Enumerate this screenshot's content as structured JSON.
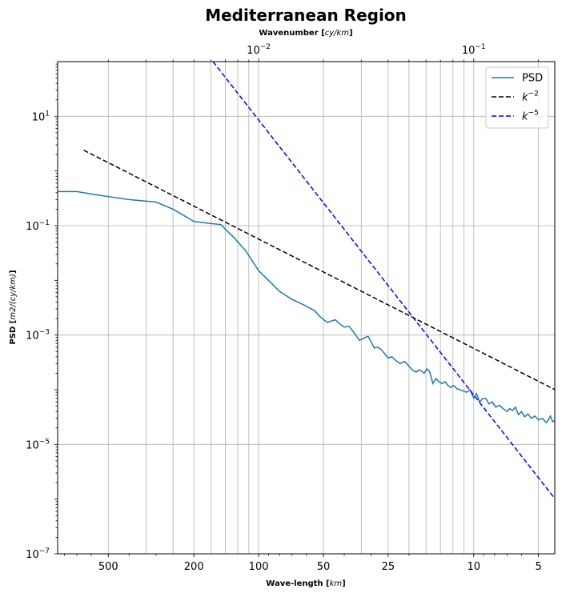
{
  "chart_data": {
    "type": "line",
    "title": "Mediterranean Region",
    "xlabel": "Wave-length [km]",
    "xlabel_top": "Wavenumber [cy/km]",
    "ylabel": "PSD [m2/(cy/km)]",
    "xscale": "log",
    "yscale": "log",
    "x_inverted": true,
    "xlim_km": [
      860,
      4.2
    ],
    "ylim": [
      1e-07,
      100
    ],
    "grid": true,
    "legend_position": "top-right",
    "x_ticks": [
      500,
      200,
      100,
      50,
      25,
      10,
      5
    ],
    "x_tick_labels": [
      "500",
      "200",
      "100",
      "50",
      "25",
      "10",
      "5"
    ],
    "top_ticks": [
      0.01,
      0.1
    ],
    "y_ticks": [
      1e-07,
      1e-05,
      0.001,
      0.1,
      10
    ],
    "series": [
      {
        "name": "PSD",
        "color": "#1f77b4",
        "style": "solid",
        "x_km": [
          860,
          700,
          600,
          500,
          400,
          300,
          250,
          200,
          170,
          150,
          130,
          115,
          100,
          90,
          80,
          70,
          62,
          55,
          52,
          48,
          46,
          44,
          42,
          40,
          38,
          36,
          34,
          32,
          31,
          30,
          29,
          28,
          27,
          26,
          25,
          24,
          23,
          22,
          21,
          20,
          19.5,
          19,
          18.5,
          18,
          17.5,
          17,
          16.5,
          16,
          15.5,
          15,
          14.5,
          14,
          13.6,
          13.2,
          12.8,
          12.4,
          12,
          11.6,
          11.2,
          10.8,
          10.4,
          10,
          9.7,
          9.4,
          9.1,
          8.8,
          8.5,
          8.2,
          7.9,
          7.6,
          7.3,
          7,
          6.8,
          6.6,
          6.4,
          6.2,
          6,
          5.8,
          5.6,
          5.4,
          5.2,
          5,
          4.8,
          4.6,
          4.5,
          4.4,
          4.3,
          4.15,
          4.05,
          4.0
        ],
        "values": [
          0.42,
          0.42,
          0.38,
          0.34,
          0.3,
          0.27,
          0.2,
          0.12,
          0.11,
          0.105,
          0.06,
          0.035,
          0.015,
          0.01,
          0.0063,
          0.0045,
          0.0036,
          0.0028,
          0.0022,
          0.0017,
          0.0018,
          0.0019,
          0.0016,
          0.0014,
          0.00145,
          0.0011,
          0.0008,
          0.0009,
          0.00095,
          0.00075,
          0.00058,
          0.0006,
          0.00055,
          0.00046,
          0.00038,
          0.0004,
          0.00034,
          0.0003,
          0.00033,
          0.00027,
          0.00024,
          0.00022,
          0.00021,
          0.00023,
          0.00022,
          0.0002,
          0.00024,
          0.00021,
          0.00013,
          0.00016,
          0.00014,
          0.00013,
          0.00014,
          0.00012,
          0.00011,
          0.00012,
          0.000105,
          0.0001,
          9.5e-05,
          9e-05,
          0.0001,
          7e-05,
          8.5e-05,
          6e-05,
          6.8e-05,
          7e-05,
          5.5e-05,
          6e-05,
          4.8e-05,
          5.2e-05,
          4.5e-05,
          4e-05,
          4.5e-05,
          4.2e-05,
          4.8e-05,
          3.5e-05,
          4e-05,
          3.2e-05,
          3.6e-05,
          3e-05,
          3.3e-05,
          2.8e-05,
          3e-05,
          2.5e-05,
          2.8e-05,
          3.3e-05,
          2.6e-05,
          2.8e-05,
          3.5e-05,
          2.2e-05
        ]
      },
      {
        "name": "k^-2",
        "color": "#000000",
        "style": "dashed",
        "x_km": [
          650,
          4.05
        ],
        "values": [
          2.4,
          9.35e-05
        ]
      },
      {
        "name": "k^-5",
        "color": "#0000ff",
        "style": "dashed",
        "x_km": [
          163,
          4.05
        ],
        "values": [
          100,
          8.5e-07
        ]
      }
    ]
  }
}
